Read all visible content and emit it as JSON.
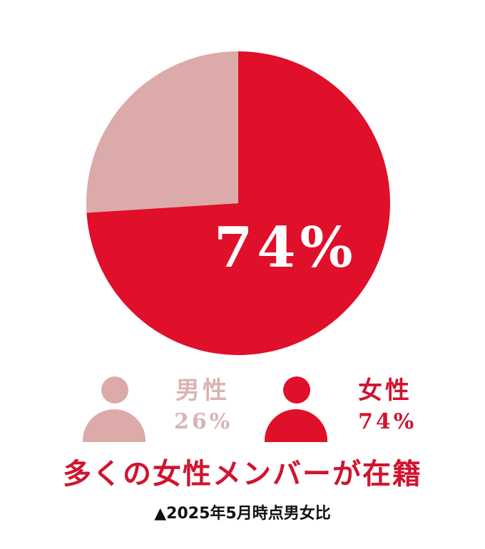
{
  "colors": {
    "female": "#e00f2a",
    "male": "#dcaaa8",
    "female_text": "#d0142f",
    "male_text": "#d8b4b3"
  },
  "chart_data": {
    "type": "pie",
    "slices": [
      {
        "name": "女性",
        "value": 74,
        "label": "74%"
      },
      {
        "name": "男性",
        "value": 26,
        "label": "26%"
      }
    ]
  },
  "legend": {
    "male": {
      "label": "男性",
      "value": "26%",
      "icon": "person-icon"
    },
    "female": {
      "label": "女性",
      "value": "74%",
      "icon": "person-icon"
    }
  },
  "headline": "多くの女性メンバーが在籍",
  "note": "▲2025年5月時点男女比"
}
